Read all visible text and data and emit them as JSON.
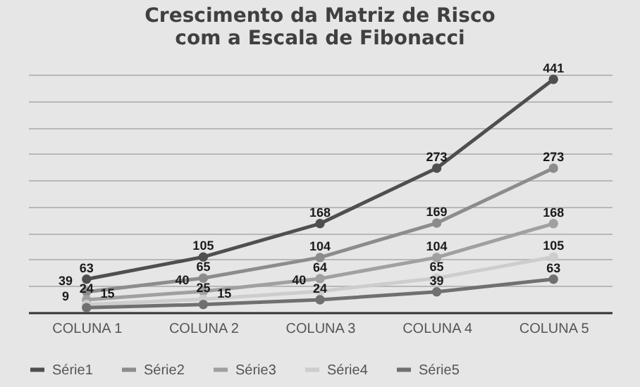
{
  "chart_data": {
    "type": "line",
    "title": [
      "Crescimento da Matriz de Risco",
      "com a Escala de Fibonacci"
    ],
    "categories": [
      "COLUNA 1",
      "COLUNA 2",
      "COLUNA 3",
      "COLUNA 4",
      "COLUNA 5"
    ],
    "series": [
      {
        "name": "Série1",
        "color": "#4f4f4f",
        "values": [
          63,
          105,
          168,
          273,
          441
        ]
      },
      {
        "name": "Série2",
        "color": "#8c8c8c",
        "values": [
          39,
          65,
          104,
          169,
          273
        ]
      },
      {
        "name": "Série3",
        "color": "#a0a0a0",
        "values": [
          24,
          40,
          64,
          104,
          168
        ]
      },
      {
        "name": "Série4",
        "color": "#cdcdcd",
        "values": [
          15,
          25,
          40,
          65,
          105
        ]
      },
      {
        "name": "Série5",
        "color": "#707070",
        "values": [
          9,
          15,
          24,
          39,
          63
        ]
      }
    ],
    "grid": "y",
    "tick_labels": "x",
    "data_labels": true,
    "legend": "bottom",
    "marker": "circle",
    "line_style": "solid"
  }
}
